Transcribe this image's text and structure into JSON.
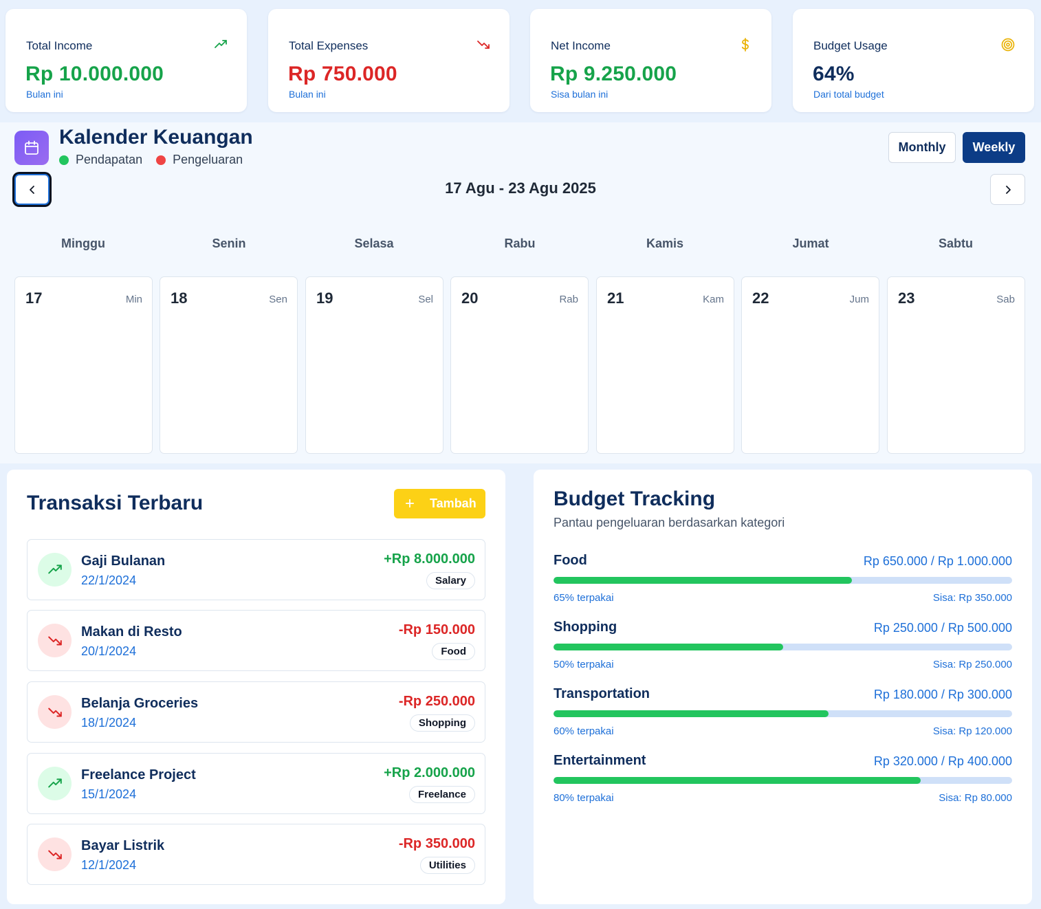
{
  "stats": [
    {
      "label": "Total Income",
      "value": "Rp 10.000.000",
      "sub": "Bulan ini",
      "icon": "trending-up-icon",
      "color": "#16a34a"
    },
    {
      "label": "Total Expenses",
      "value": "Rp 750.000",
      "sub": "Bulan ini",
      "icon": "trending-down-icon",
      "color": "#dc2626"
    },
    {
      "label": "Net Income",
      "value": "Rp 9.250.000",
      "sub": "Sisa bulan ini",
      "icon": "dollar-icon",
      "color": "#16a34a"
    },
    {
      "label": "Budget Usage",
      "value": "64%",
      "sub": "Dari total budget",
      "icon": "target-icon",
      "color": "#0f2d5c"
    }
  ],
  "calendar": {
    "title": "Kalender Keuangan",
    "legend_income": "Pendapatan",
    "legend_expense": "Pengeluaran",
    "view_monthly": "Monthly",
    "view_weekly": "Weekly",
    "active_view": "Weekly",
    "range": "17 Agu - 23 Agu 2025",
    "weekdays": [
      "Minggu",
      "Senin",
      "Selasa",
      "Rabu",
      "Kamis",
      "Jumat",
      "Sabtu"
    ],
    "days": [
      {
        "num": "17",
        "abbr": "Min"
      },
      {
        "num": "18",
        "abbr": "Sen"
      },
      {
        "num": "19",
        "abbr": "Sel"
      },
      {
        "num": "20",
        "abbr": "Rab"
      },
      {
        "num": "21",
        "abbr": "Kam"
      },
      {
        "num": "22",
        "abbr": "Jum"
      },
      {
        "num": "23",
        "abbr": "Sab"
      }
    ]
  },
  "transactions": {
    "title": "Transaksi Terbaru",
    "add_label": "Tambah",
    "items": [
      {
        "name": "Gaji Bulanan",
        "date": "22/1/2024",
        "amount": "+Rp 8.000.000",
        "tag": "Salary",
        "type": "income"
      },
      {
        "name": "Makan di Resto",
        "date": "20/1/2024",
        "amount": "-Rp 150.000",
        "tag": "Food",
        "type": "expense"
      },
      {
        "name": "Belanja Groceries",
        "date": "18/1/2024",
        "amount": "-Rp 250.000",
        "tag": "Shopping",
        "type": "expense"
      },
      {
        "name": "Freelance Project",
        "date": "15/1/2024",
        "amount": "+Rp 2.000.000",
        "tag": "Freelance",
        "type": "income"
      },
      {
        "name": "Bayar Listrik",
        "date": "12/1/2024",
        "amount": "-Rp 350.000",
        "tag": "Utilities",
        "type": "expense"
      }
    ]
  },
  "budget": {
    "title": "Budget Tracking",
    "subtitle": "Pantau pengeluaran berdasarkan kategori",
    "items": [
      {
        "category": "Food",
        "amount": "Rp 650.000 / Rp 1.000.000",
        "used": "65% terpakai",
        "remaining": "Sisa: Rp 350.000",
        "fraction": 0.65
      },
      {
        "category": "Shopping",
        "amount": "Rp 250.000 / Rp 500.000",
        "used": "50% terpakai",
        "remaining": "Sisa: Rp 250.000",
        "fraction": 0.5
      },
      {
        "category": "Transportation",
        "amount": "Rp 180.000 / Rp 300.000",
        "used": "60% terpakai",
        "remaining": "Sisa: Rp 120.000",
        "fraction": 0.6
      },
      {
        "category": "Entertainment",
        "amount": "Rp 320.000 / Rp 400.000",
        "used": "80% terpakai",
        "remaining": "Sisa: Rp 80.000",
        "fraction": 0.8
      }
    ]
  },
  "colors": {
    "income": "#16a34a",
    "expense": "#dc2626",
    "primary": "#0c3c86",
    "accent": "#fcd116",
    "progress": "#22c55e"
  }
}
